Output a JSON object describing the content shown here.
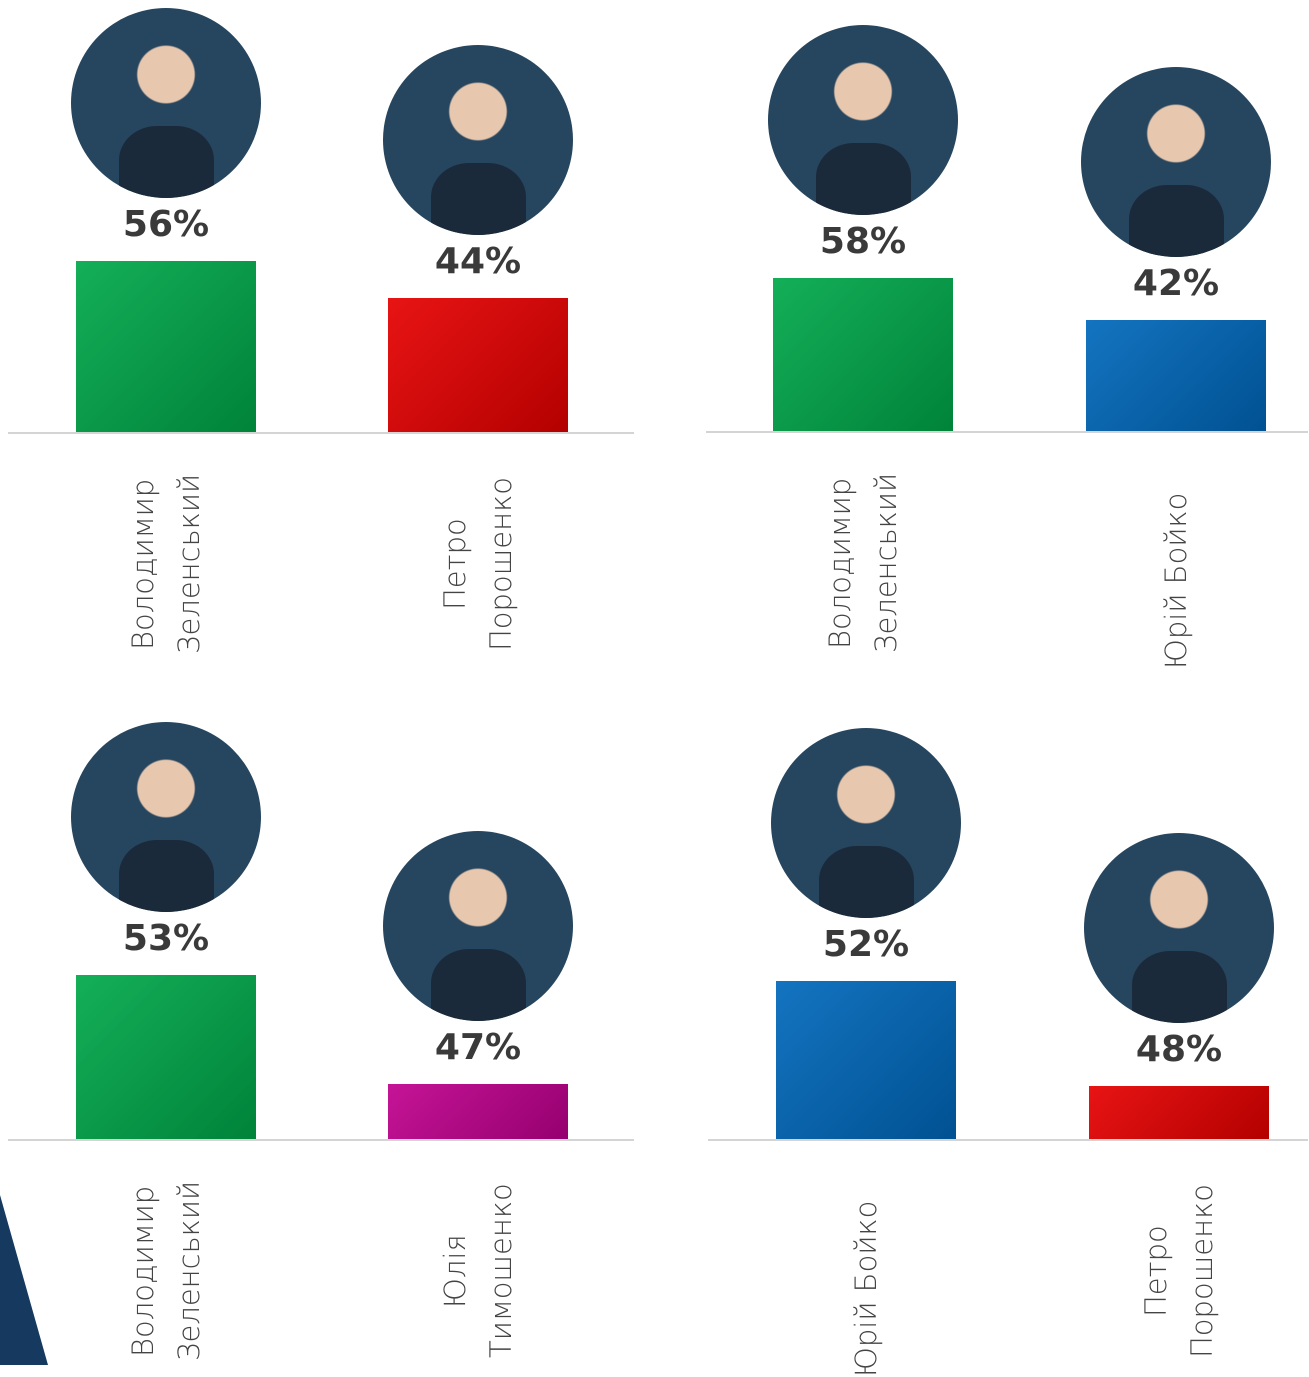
{
  "chart_data": [
    {
      "type": "bar",
      "categories": [
        "Володимир Зеленський",
        "Петро Порошенко"
      ],
      "values": [
        56,
        44
      ],
      "value_labels": [
        "56%",
        "44%"
      ],
      "colors": [
        "#00a84a",
        "#e60000"
      ],
      "ylim": [
        0,
        82
      ]
    },
    {
      "type": "bar",
      "categories": [
        "Володимир Зеленський",
        "Юрій Бойко"
      ],
      "values": [
        58,
        42
      ],
      "value_labels": [
        "58%",
        "42%"
      ],
      "colors": [
        "#00a84a",
        "#0068bb"
      ],
      "ylim": [
        0,
        95
      ]
    },
    {
      "type": "bar",
      "categories": [
        "Володимир Зеленський",
        "Юлія Тимошенко"
      ],
      "values": [
        53,
        47
      ],
      "value_labels": [
        "53%",
        "47%"
      ],
      "colors": [
        "#00a84a",
        "#c0008e"
      ],
      "ylim": [
        44,
        57.7
      ]
    },
    {
      "type": "bar",
      "categories": [
        "Юрій Бойко",
        "Петро Порошенко"
      ],
      "values": [
        52,
        48
      ],
      "value_labels": [
        "52%",
        "48%"
      ],
      "colors": [
        "#0068bb",
        "#e60000"
      ],
      "ylim": [
        46,
        55.5
      ]
    }
  ]
}
